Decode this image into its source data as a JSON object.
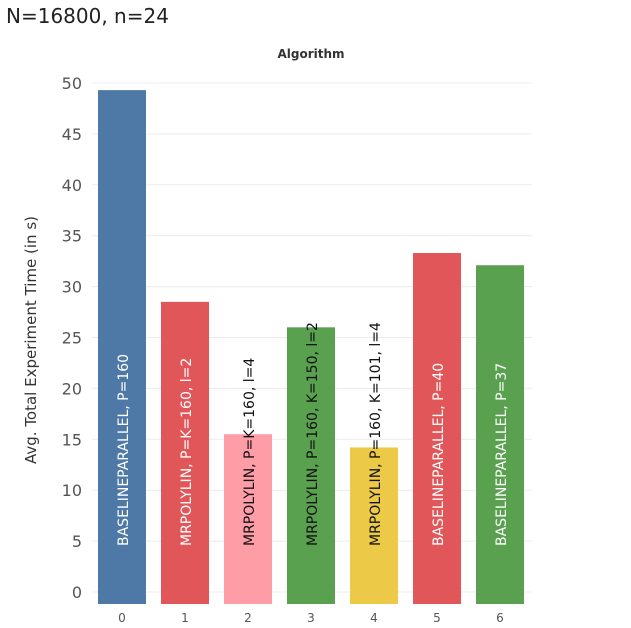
{
  "header": {
    "subtitle": "N=16800, n=24"
  },
  "chart_data": {
    "type": "bar",
    "title": "Algorithm",
    "xlabel": "",
    "ylabel": "Avg. Total Experiment Time (in s)",
    "ylim": [
      0,
      50
    ],
    "yticks": [
      0,
      5,
      10,
      15,
      20,
      25,
      30,
      35,
      40,
      45,
      50
    ],
    "grid": true,
    "categories": [
      "0",
      "1",
      "2",
      "3",
      "4",
      "5",
      "6"
    ],
    "values": [
      49.3,
      28.5,
      15.5,
      26.0,
      14.2,
      33.3,
      32.1
    ],
    "bar_labels": [
      "BASELINEPARALLEL, P=160",
      "MRPOLYLIN, P=K=160, l=2",
      "MRPOLYLIN, P=K=160, l=4",
      "MRPOLYLIN, P=160, K=150, l=2",
      "MRPOLYLIN, P=160, K=101, l=4",
      "BASELINEPARALLEL, P=40",
      "BASELINEPARALLEL, P=37"
    ],
    "bar_colors": [
      "#4e79a7",
      "#e15759",
      "#ff9da7",
      "#59a14f",
      "#edc948",
      "#e15759",
      "#59a14f"
    ],
    "label_colors": [
      "#ffffff",
      "#ffffff",
      "#111111",
      "#111111",
      "#111111",
      "#ffffff",
      "#ffffff"
    ]
  }
}
